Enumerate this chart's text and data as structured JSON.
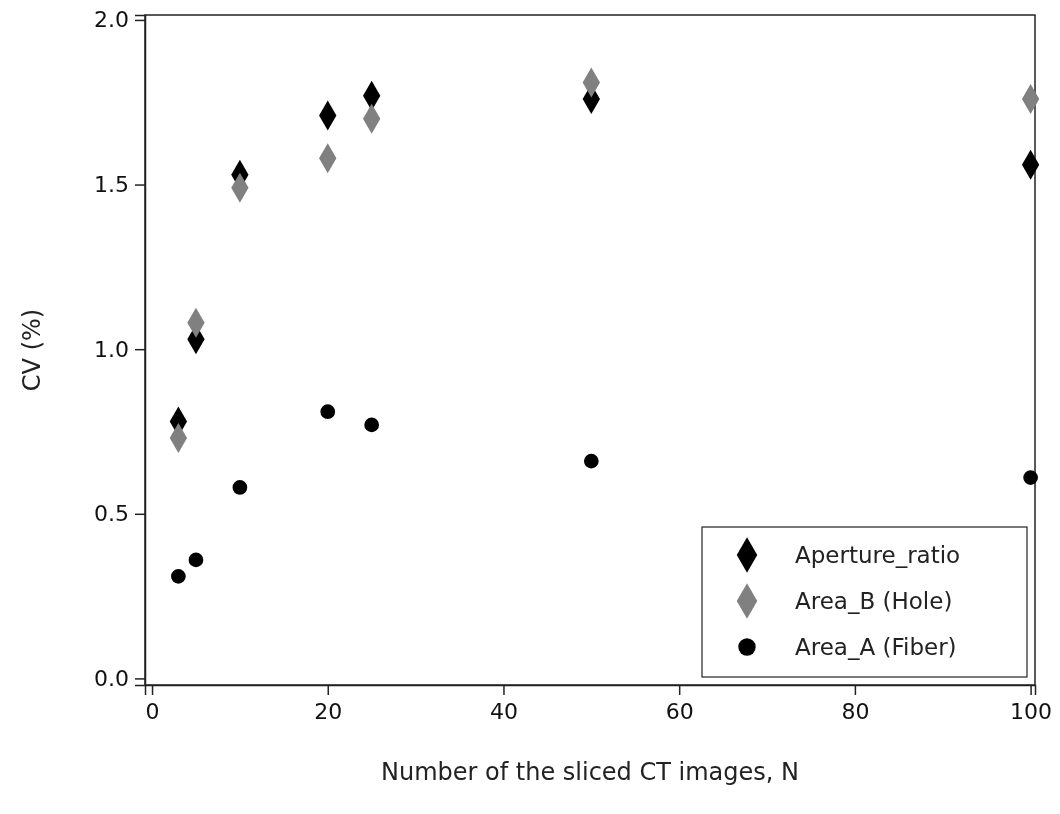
{
  "chart_data": {
    "type": "scatter",
    "xlabel": "Number of the sliced CT images, N",
    "ylabel": "CV (%)",
    "xlim": [
      -0.8,
      100.5
    ],
    "ylim": [
      -0.02,
      2.015
    ],
    "xticks": [
      0,
      20,
      40,
      60,
      80,
      100
    ],
    "yticks": [
      {
        "value": 0,
        "label": "0.0"
      },
      {
        "value": 0.5,
        "label": "0.5"
      },
      {
        "value": 1,
        "label": "1.0"
      },
      {
        "value": 1.5,
        "label": "1.5"
      },
      {
        "value": 2,
        "label": "2.0"
      }
    ],
    "grid": false,
    "legend": "bottom right",
    "x": [
      3,
      5,
      10,
      20,
      25,
      50,
      100
    ],
    "series": [
      {
        "name": "Aperture_ratio",
        "color": "#000000",
        "marker": "diamond",
        "values": [
          0.78,
          1.03,
          1.53,
          1.71,
          1.77,
          1.76,
          1.56
        ]
      },
      {
        "name": "Area_B (Hole)",
        "color": "#808080",
        "marker": "diamond",
        "values": [
          0.73,
          1.08,
          1.49,
          1.58,
          1.7,
          1.81,
          1.76
        ]
      },
      {
        "name": "Area_A (Fiber)",
        "color": "#000000",
        "marker": "circle",
        "values": [
          0.31,
          0.36,
          0.58,
          0.81,
          0.77,
          0.66,
          0.61
        ]
      }
    ]
  }
}
